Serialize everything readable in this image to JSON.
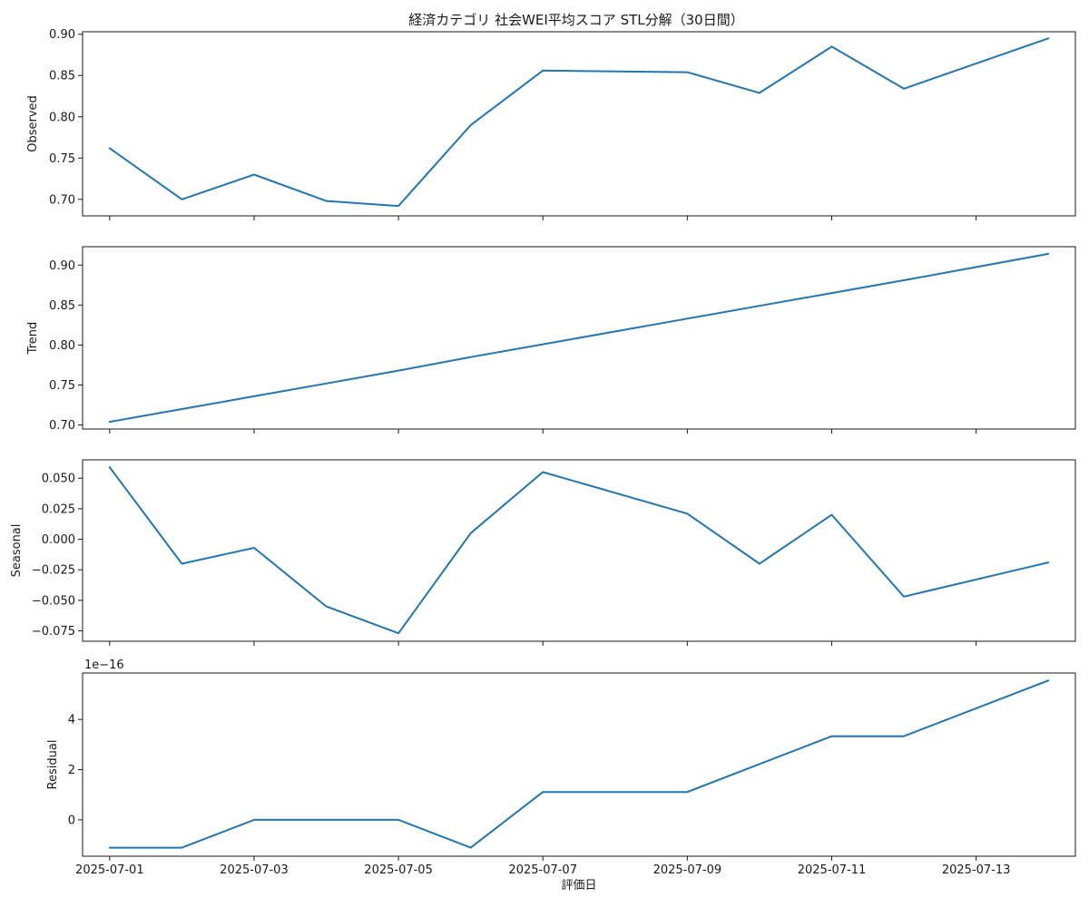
{
  "chart_data": {
    "type": "line",
    "title": "経済カテゴリ 社会WEI平均スコア STL分解（30日間）",
    "xlabel": "評価日",
    "x": [
      "2025-07-01",
      "2025-07-02",
      "2025-07-03",
      "2025-07-04",
      "2025-07-05",
      "2025-07-06",
      "2025-07-07",
      "2025-07-09",
      "2025-07-10",
      "2025-07-11",
      "2025-07-12",
      "2025-07-14"
    ],
    "x_ticks": [
      "2025-07-01",
      "2025-07-03",
      "2025-07-05",
      "2025-07-07",
      "2025-07-09",
      "2025-07-11",
      "2025-07-13"
    ],
    "xlim": [
      "2025-06-30T15:00",
      "2025-07-14T09:00"
    ],
    "line_color": "#1f77b4",
    "grid": false,
    "panels": [
      {
        "ylabel": "Observed",
        "ylim": [
          0.68,
          0.903
        ],
        "yticks": [
          "0.70",
          "0.75",
          "0.80",
          "0.85",
          "0.90"
        ],
        "values": [
          0.762,
          0.7,
          0.73,
          0.698,
          0.692,
          0.79,
          0.856,
          0.854,
          0.829,
          0.885,
          0.834,
          0.895
        ]
      },
      {
        "ylabel": "Trend",
        "ylim": [
          0.695,
          0.923
        ],
        "yticks": [
          "0.70",
          "0.75",
          "0.80",
          "0.85",
          "0.90"
        ],
        "values": [
          0.704,
          0.72,
          0.736,
          0.752,
          0.768,
          0.785,
          0.801,
          0.833,
          0.849,
          0.865,
          0.881,
          0.914
        ]
      },
      {
        "ylabel": "Seasonal",
        "ylim": [
          -0.0835,
          0.065
        ],
        "yticks": [
          "0.050",
          "0.025",
          "0.000",
          "−0.025",
          "−0.050",
          "−0.075"
        ],
        "values": [
          0.059,
          -0.02,
          -0.007,
          -0.055,
          -0.077,
          0.005,
          0.055,
          0.021,
          -0.02,
          0.02,
          -0.047,
          -0.019
        ]
      },
      {
        "ylabel": "Residual",
        "offset_label": "1e−16",
        "ylim": [
          -1.45,
          5.85
        ],
        "yticks": [
          "0",
          "2",
          "4"
        ],
        "values": [
          -1.11,
          -1.11,
          0.0,
          0.0,
          0.0,
          -1.11,
          1.11,
          1.11,
          2.22,
          3.33,
          3.33,
          5.55
        ]
      }
    ]
  }
}
